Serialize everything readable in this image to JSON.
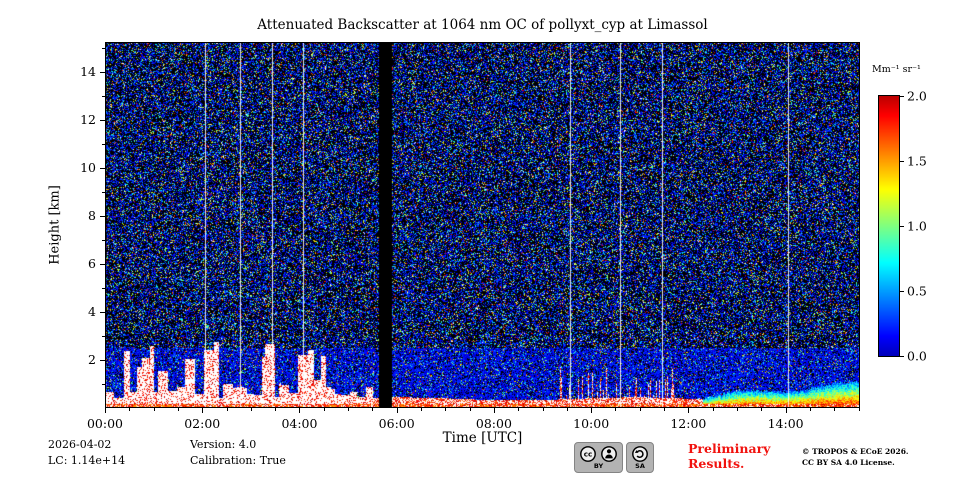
{
  "chart_data": {
    "type": "heatmap",
    "title": "Attenuated Backscatter at 1064 nm OC of pollyxt_cyp at Limassol",
    "xlabel": "Time [UTC]",
    "ylabel": "Height [km]",
    "x_ticks": [
      {
        "label": "00:00",
        "hour": 0
      },
      {
        "label": "02:00",
        "hour": 2
      },
      {
        "label": "04:00",
        "hour": 4
      },
      {
        "label": "06:00",
        "hour": 6
      },
      {
        "label": "08:00",
        "hour": 8
      },
      {
        "label": "10:00",
        "hour": 10
      },
      {
        "label": "12:00",
        "hour": 12
      },
      {
        "label": "14:00",
        "hour": 14
      }
    ],
    "x_minor_step_hours": 0.5,
    "x_range_hours": [
      0,
      15.53
    ],
    "y_ticks_km": [
      2,
      4,
      6,
      8,
      10,
      12,
      14
    ],
    "y_minor_step_km": 1,
    "y_range_km": [
      0,
      15.25
    ],
    "colorbar": {
      "label": "Mm⁻¹ sr⁻¹",
      "min": 0.0,
      "max": 2.0,
      "ticks": [
        {
          "label": "0.0",
          "value": 0.0
        },
        {
          "label": "0.5",
          "value": 0.5
        },
        {
          "label": "1.0",
          "value": 1.0
        },
        {
          "label": "1.5",
          "value": 1.5
        },
        {
          "label": "2.0",
          "value": 2.0
        }
      ],
      "colormap": "jet",
      "over_color": "#ffffff",
      "background_color": "#000000"
    },
    "features": {
      "data_gap_hours": [
        5.62,
        5.9
      ],
      "calibration_line_hours": [
        2.06,
        2.78,
        3.44,
        4.07,
        9.57,
        10.6,
        11.46,
        14.05
      ],
      "morning_cloud_period_hours": [
        0.25,
        4.7
      ],
      "boundary_layer_top_km": 0.4,
      "afternoon_haze_start_hour": 12.3,
      "noise_seed": 42
    }
  },
  "footer": {
    "date": "2026-04-02",
    "lc": "LC: 1.14e+14",
    "version": "Version: 4.0",
    "calibration": "Calibration: True",
    "preliminary": "Preliminary Results.",
    "preliminary_color": "#f1120e",
    "copyright_line1": "© TROPOS & ECoE 2026.",
    "copyright_line2": "CC BY SA 4.0 License.",
    "cc_label": "cc",
    "by_label": "BY",
    "sa_label": "SA"
  }
}
